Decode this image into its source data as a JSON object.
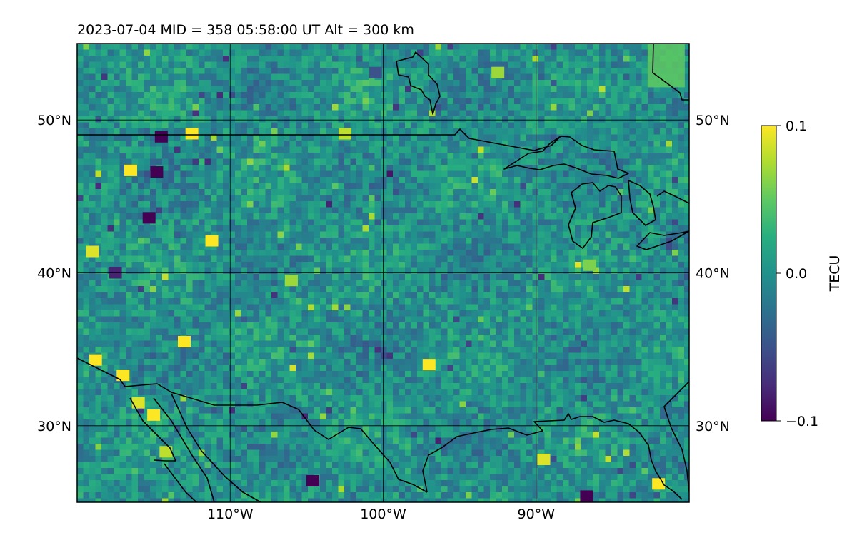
{
  "title": "2023-07-04  MID = 358    05:58:00  UT  Alt = 300 km",
  "map": {
    "projection": "equirectangular",
    "lon_range": [
      -120,
      -80
    ],
    "lat_range": [
      25,
      55
    ],
    "gridlines": true,
    "lon_ticks": [
      {
        "value": -110,
        "label": "110°W"
      },
      {
        "value": -100,
        "label": "100°W"
      },
      {
        "value": -90,
        "label": "90°W"
      }
    ],
    "lat_ticks": [
      {
        "value": 30,
        "label": "30°N"
      },
      {
        "value": 40,
        "label": "40°N"
      },
      {
        "value": 50,
        "label": "50°N"
      }
    ],
    "lat_labels_both_sides": true,
    "coastlines_and_borders": "black"
  },
  "field": {
    "description_colormap": "viridis",
    "background_value": 0.0,
    "anomalies": [
      {
        "lon": -112.5,
        "lat": 49.1,
        "value": 0.1,
        "kind": "blob"
      },
      {
        "lon": -102.5,
        "lat": 49.1,
        "value": 0.08,
        "kind": "blob"
      },
      {
        "lon": -114.5,
        "lat": 48.9,
        "value": -0.1,
        "kind": "blob"
      },
      {
        "lon": -116.5,
        "lat": 46.7,
        "value": 0.1,
        "kind": "blob"
      },
      {
        "lon": -114.8,
        "lat": 46.6,
        "value": -0.1,
        "kind": "blob"
      },
      {
        "lon": -115.3,
        "lat": 43.6,
        "value": -0.1,
        "kind": "blob"
      },
      {
        "lon": -111.2,
        "lat": 42.1,
        "value": 0.1,
        "kind": "blob"
      },
      {
        "lon": -119.0,
        "lat": 41.4,
        "value": 0.09,
        "kind": "blob"
      },
      {
        "lon": -117.5,
        "lat": 40.0,
        "value": -0.08,
        "kind": "blob"
      },
      {
        "lon": -106.0,
        "lat": 39.5,
        "value": 0.07,
        "kind": "blob"
      },
      {
        "lon": -113.0,
        "lat": 35.5,
        "value": 0.1,
        "kind": "blob"
      },
      {
        "lon": -118.8,
        "lat": 34.3,
        "value": 0.1,
        "kind": "blob"
      },
      {
        "lon": -117.0,
        "lat": 33.3,
        "value": 0.1,
        "kind": "blob"
      },
      {
        "lon": -116.0,
        "lat": 31.5,
        "value": 0.09,
        "kind": "blob"
      },
      {
        "lon": -115.0,
        "lat": 30.7,
        "value": 0.1,
        "kind": "blob"
      },
      {
        "lon": -114.2,
        "lat": 28.3,
        "value": 0.08,
        "kind": "blob"
      },
      {
        "lon": -97.0,
        "lat": 34.0,
        "value": 0.1,
        "kind": "blob"
      },
      {
        "lon": -104.6,
        "lat": 26.4,
        "value": -0.1,
        "kind": "blob"
      },
      {
        "lon": -89.5,
        "lat": 27.8,
        "value": 0.09,
        "kind": "blob"
      },
      {
        "lon": -82.0,
        "lat": 26.2,
        "value": 0.1,
        "kind": "blob"
      },
      {
        "lon": -86.7,
        "lat": 25.4,
        "value": -0.1,
        "kind": "blob"
      },
      {
        "lon": -92.5,
        "lat": 53.1,
        "value": 0.07,
        "kind": "blob"
      },
      {
        "lon": -81.5,
        "lat": 54.0,
        "value": 0.05,
        "kind": "region"
      },
      {
        "lon": -100.5,
        "lat": 53.1,
        "value": -0.05,
        "kind": "blob"
      },
      {
        "lon": -86.5,
        "lat": 40.5,
        "value": 0.06,
        "kind": "blob"
      }
    ]
  },
  "colorbar": {
    "label": "TECU",
    "min": -0.1,
    "max": 0.1,
    "ticks": [
      {
        "value": 0.1,
        "label": "0.1"
      },
      {
        "value": 0.0,
        "label": "0.0"
      },
      {
        "value": -0.1,
        "label": "−0.1"
      }
    ],
    "colormap": "viridis"
  },
  "colors": {
    "frame": "#000000",
    "gridline": "#000000",
    "coastline": "#000000"
  }
}
